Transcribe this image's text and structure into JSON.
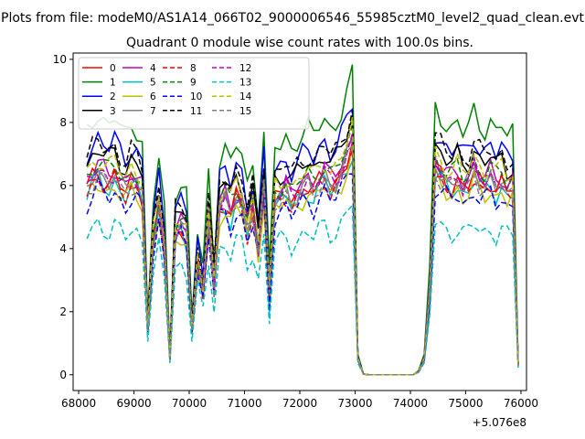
{
  "chart_data": {
    "type": "line",
    "suptitle": "Plots from file: modeM0/AS1A14_066T02_9000006546_55985cztM0_level2_quad_clean.evt",
    "title": "Quadrant 0 module wise count rates with 100.0s bins.",
    "xlabel": "",
    "ylabel": "",
    "x_offset_text": "+5.076e8",
    "xlim": [
      67900,
      76100
    ],
    "ylim": [
      -0.5,
      10.2
    ],
    "x_ticks": [
      68000,
      69000,
      70000,
      71000,
      72000,
      73000,
      74000,
      75000,
      76000
    ],
    "y_ticks": [
      0,
      2,
      4,
      6,
      8,
      10
    ],
    "grid": false,
    "legend": {
      "placement": "top-left",
      "columns": 5
    },
    "series_shape": [
      5.9,
      6.2,
      6.4,
      6.2,
      6.1,
      6.3,
      6.0,
      5.8,
      6.1,
      6.0,
      5.7,
      1.4,
      4.2,
      5.3,
      4.0,
      0.5,
      4.5,
      4.7,
      4.4,
      1.4,
      3.5,
      2.6,
      4.9,
      2.8,
      5.3,
      5.5,
      5.1,
      5.6,
      5.4,
      4.6,
      5.2,
      4.0,
      5.9,
      2.4,
      5.5,
      5.6,
      5.8,
      5.5,
      5.7,
      5.9,
      6.0,
      5.8,
      6.1,
      6.3,
      6.0,
      6.1,
      6.4,
      6.8,
      7.3,
      0.5,
      0.02,
      0,
      0,
      0,
      0,
      0,
      0,
      0,
      0,
      0,
      0.1,
      0.5,
      2.4,
      6.5,
      6.3,
      6.1,
      6.0,
      6.2,
      5.9,
      6.0,
      6.4,
      6.1,
      6.0,
      6.2,
      5.9,
      6.1,
      5.8,
      5.9,
      0.3
    ],
    "series": [
      {
        "name": "0",
        "color": "#ff0000",
        "dash": "solid",
        "scale": 1.0
      },
      {
        "name": "1",
        "color": "#008000",
        "dash": "solid",
        "scale": 1.3
      },
      {
        "name": "2",
        "color": "#0000ff",
        "dash": "solid",
        "scale": 1.18
      },
      {
        "name": "3",
        "color": "#000000",
        "dash": "solid",
        "scale": 1.12
      },
      {
        "name": "4",
        "color": "#bf00bf",
        "dash": "solid",
        "scale": 1.04
      },
      {
        "name": "5",
        "color": "#00bfbf",
        "dash": "solid",
        "scale": 0.97
      },
      {
        "name": "6",
        "color": "#bfbf00",
        "dash": "solid",
        "scale": 0.95
      },
      {
        "name": "7",
        "color": "#808080",
        "dash": "solid",
        "scale": 1.01
      },
      {
        "name": "8",
        "color": "#ff0000",
        "dash": "dashed",
        "scale": 0.98
      },
      {
        "name": "9",
        "color": "#008000",
        "dash": "dashed",
        "scale": 1.06
      },
      {
        "name": "10",
        "color": "#0000ff",
        "dash": "dashed",
        "scale": 0.92
      },
      {
        "name": "11",
        "color": "#000000",
        "dash": "dashed",
        "scale": 1.16
      },
      {
        "name": "12",
        "color": "#bf00bf",
        "dash": "dashed",
        "scale": 1.02
      },
      {
        "name": "13",
        "color": "#00bfbf",
        "dash": "dashed",
        "scale": 0.75
      },
      {
        "name": "14",
        "color": "#bfbf00",
        "dash": "dashed",
        "scale": 1.08
      },
      {
        "name": "15",
        "color": "#808080",
        "dash": "dashed",
        "scale": 0.99
      }
    ]
  }
}
